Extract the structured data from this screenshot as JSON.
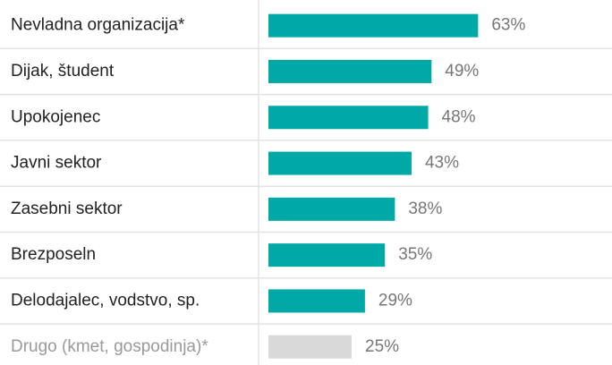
{
  "chart_data": {
    "type": "hbar",
    "categories": [
      "Nevladna organizacija*",
      "Dijak, študent",
      "Upokojenec",
      "Javni sektor",
      "Zasebni sektor",
      "Brezposeln",
      "Delodajalec, vodstvo, sp.",
      "Drugo (kmet, gospodinja)*"
    ],
    "values": [
      63,
      49,
      48,
      43,
      38,
      35,
      29,
      25
    ],
    "value_labels": [
      "63%",
      "49%",
      "48%",
      "43%",
      "38%",
      "35%",
      "29%",
      "25%"
    ],
    "colors": [
      "#00a9a6",
      "#00a9a6",
      "#00a9a6",
      "#00a9a6",
      "#00a9a6",
      "#00a9a6",
      "#00a9a6",
      "#d9d9d9"
    ],
    "xlim": [
      0,
      100
    ]
  }
}
